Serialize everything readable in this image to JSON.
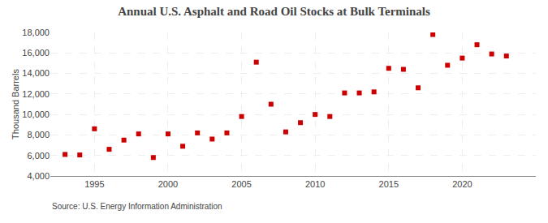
{
  "chart_data": {
    "type": "scatter",
    "title": "Annual U.S. Asphalt and Road Oil Stocks at Bulk Terminals",
    "ylabel": "Thousand Barrels",
    "source": "Source: U.S. Energy Information Administration",
    "x": [
      1993,
      1994,
      1995,
      1996,
      1997,
      1998,
      1999,
      2000,
      2001,
      2002,
      2003,
      2004,
      2005,
      2006,
      2007,
      2008,
      2009,
      2010,
      2011,
      2012,
      2013,
      2014,
      2015,
      2016,
      2017,
      2018,
      2019,
      2020,
      2021,
      2022,
      2023
    ],
    "values": [
      6100,
      6050,
      8600,
      6600,
      7500,
      8100,
      5800,
      8100,
      6900,
      8200,
      7600,
      8200,
      9800,
      15100,
      11000,
      8300,
      9200,
      10000,
      9800,
      12100,
      12100,
      12200,
      14500,
      14400,
      12600,
      17800,
      14800,
      15500,
      16800,
      15900,
      15700
    ],
    "color": "#cc0000",
    "marker": "square",
    "grid": true,
    "xlim": [
      1992,
      2025
    ],
    "xticks": [
      1995,
      2000,
      2005,
      2010,
      2015,
      2020
    ],
    "ylim": [
      4000,
      18000
    ],
    "yticks": [
      {
        "value": 4000,
        "label": "4,000"
      },
      {
        "value": 6000,
        "label": "6,000"
      },
      {
        "value": 8000,
        "label": "8,000"
      },
      {
        "value": 10000,
        "label": "10,000"
      },
      {
        "value": 12000,
        "label": "12,000"
      },
      {
        "value": 14000,
        "label": "14,000"
      },
      {
        "value": 16000,
        "label": "16,000"
      },
      {
        "value": 18000,
        "label": "18,000"
      }
    ]
  }
}
